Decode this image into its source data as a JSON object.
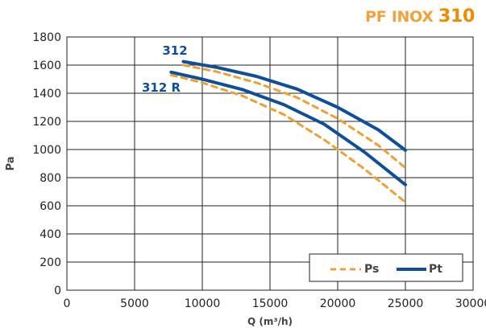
{
  "title": {
    "text": "PF INOX",
    "model": "310"
  },
  "chart_data": {
    "type": "line",
    "xlabel": "Q (m³/h)",
    "ylabel": "Pa",
    "xlim": [
      0,
      30000
    ],
    "ylim": [
      0,
      1800
    ],
    "xticks": [
      0,
      5000,
      10000,
      15000,
      20000,
      25000,
      30000
    ],
    "yticks": [
      0,
      200,
      400,
      600,
      800,
      1000,
      1200,
      1400,
      1600,
      1800
    ],
    "grid": true,
    "legend": {
      "position": "bottom-right",
      "items": [
        "Ps",
        "Pt"
      ]
    },
    "curve_labels": [
      "312",
      "312 R"
    ],
    "series": [
      {
        "name": "Pt",
        "curve": "312",
        "style": "solid",
        "color": "#0f4e9a",
        "x": [
          8600,
          11000,
          14000,
          17000,
          20000,
          23000,
          25000
        ],
        "y": [
          1625,
          1585,
          1520,
          1430,
          1300,
          1140,
          995
        ]
      },
      {
        "name": "Ps",
        "curve": "312",
        "style": "dashed",
        "color": "#f0a030",
        "x": [
          8600,
          11000,
          14000,
          17000,
          20000,
          23000,
          25000
        ],
        "y": [
          1600,
          1555,
          1475,
          1370,
          1220,
          1030,
          870
        ]
      },
      {
        "name": "Pt",
        "curve": "312 R",
        "style": "solid",
        "color": "#0f4e9a",
        "x": [
          7700,
          10000,
          13000,
          16000,
          19000,
          22000,
          25000
        ],
        "y": [
          1550,
          1500,
          1425,
          1320,
          1180,
          980,
          750
        ]
      },
      {
        "name": "Ps",
        "curve": "312 R",
        "style": "dashed",
        "color": "#f0a030",
        "x": [
          7700,
          10000,
          13000,
          16000,
          19000,
          22000,
          25000
        ],
        "y": [
          1530,
          1475,
          1380,
          1250,
          1070,
          860,
          625
        ]
      }
    ]
  },
  "colors": {
    "accent": "#f08a00",
    "pt": "#0f4e9a",
    "ps": "#f0a030"
  }
}
